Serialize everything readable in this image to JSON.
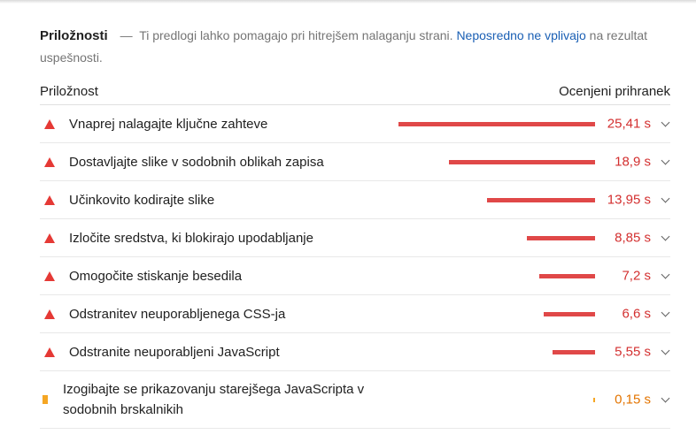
{
  "header": {
    "title": "Priložnosti",
    "separator": "—",
    "description": "Ti predlogi lahko pomagajo pri hitrejšem nalaganju strani.",
    "link_text": "Neposredno ne vplivajo",
    "suffix": "na rezultat uspešnosti."
  },
  "columns": {
    "left": "Priložnost",
    "right": "Ocenjeni prihranek"
  },
  "opportunities": [
    {
      "label": "Vnaprej nalagajte ključne zahteve",
      "saving": "25,41 s",
      "severity": "fail",
      "icon": "triangle-warning-icon",
      "fraction": 1.0
    },
    {
      "label": "Dostavljajte slike v sodobnih oblikah zapisa",
      "saving": "18,9 s",
      "severity": "fail",
      "icon": "triangle-warning-icon",
      "fraction": 0.744
    },
    {
      "label": "Učinkovito kodirajte slike",
      "saving": "13,95 s",
      "severity": "fail",
      "icon": "triangle-warning-icon",
      "fraction": 0.549
    },
    {
      "label": "Izločite sredstva, ki blokirajo upodabljanje",
      "saving": "8,85 s",
      "severity": "fail",
      "icon": "triangle-warning-icon",
      "fraction": 0.348
    },
    {
      "label": "Omogočite stiskanje besedila",
      "saving": "7,2 s",
      "severity": "fail",
      "icon": "triangle-warning-icon",
      "fraction": 0.283
    },
    {
      "label": "Odstranitev neuporabljenega CSS-ja",
      "saving": "6,6 s",
      "severity": "fail",
      "icon": "triangle-warning-icon",
      "fraction": 0.26
    },
    {
      "label": "Odstranite neuporabljeni JavaScript",
      "saving": "5,55 s",
      "severity": "fail",
      "icon": "triangle-warning-icon",
      "fraction": 0.218
    },
    {
      "label": "Izogibajte se prikazovanju starejšega JavaScripta v sodobnih brskalnikih",
      "saving": "0,15 s",
      "severity": "average",
      "icon": "square-average-icon",
      "fraction": 0.006
    }
  ],
  "colors": {
    "fail": "#e04848",
    "fail_text": "#d32f2f",
    "average": "#f5a623",
    "average_text": "#e37400",
    "link": "#1a5fb4"
  }
}
